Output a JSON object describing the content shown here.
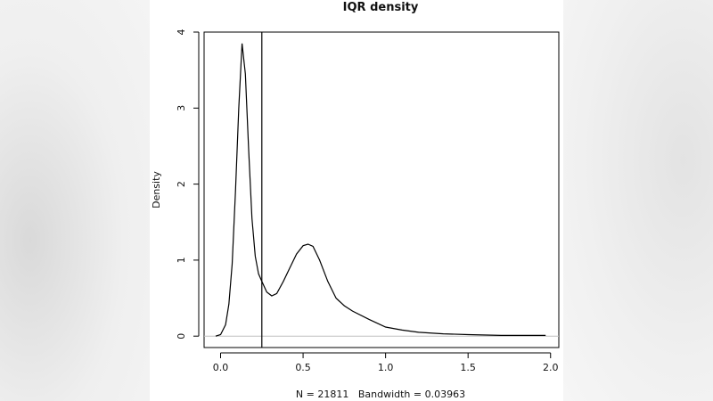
{
  "chart_data": {
    "type": "line",
    "title": "IQR density",
    "ylabel": "Density",
    "xlabel": "N = 21811   Bandwidth = 0.03963",
    "xlim": [
      -0.1,
      2.05
    ],
    "ylim": [
      -0.15,
      4.0
    ],
    "xticks": [
      "0.0",
      "0.5",
      "1.0",
      "1.5",
      "2.0"
    ],
    "xtick_values": [
      0.0,
      0.5,
      1.0,
      1.5,
      2.0
    ],
    "yticks": [
      "0",
      "1",
      "2",
      "3",
      "4"
    ],
    "ytick_values": [
      0,
      1,
      2,
      3,
      4
    ],
    "vline_x": 0.25,
    "zero_line_color": "#bfbfbf",
    "line_color": "#000000",
    "series": [
      {
        "x": [
          -0.03,
          0.0,
          0.03,
          0.05,
          0.07,
          0.09,
          0.11,
          0.13,
          0.15,
          0.17,
          0.19,
          0.21,
          0.23,
          0.25,
          0.28,
          0.31,
          0.34,
          0.38,
          0.42,
          0.46,
          0.5,
          0.53,
          0.56,
          0.6,
          0.65,
          0.7,
          0.75,
          0.8,
          0.9,
          1.0,
          1.1,
          1.2,
          1.35,
          1.5,
          1.7,
          1.97
        ],
        "y": [
          0.0,
          0.02,
          0.15,
          0.42,
          0.95,
          1.9,
          3.0,
          3.85,
          3.45,
          2.45,
          1.55,
          1.05,
          0.82,
          0.72,
          0.58,
          0.53,
          0.56,
          0.72,
          0.9,
          1.08,
          1.19,
          1.21,
          1.18,
          1.0,
          0.72,
          0.5,
          0.4,
          0.33,
          0.22,
          0.12,
          0.08,
          0.05,
          0.03,
          0.02,
          0.01,
          0.01
        ]
      }
    ]
  }
}
